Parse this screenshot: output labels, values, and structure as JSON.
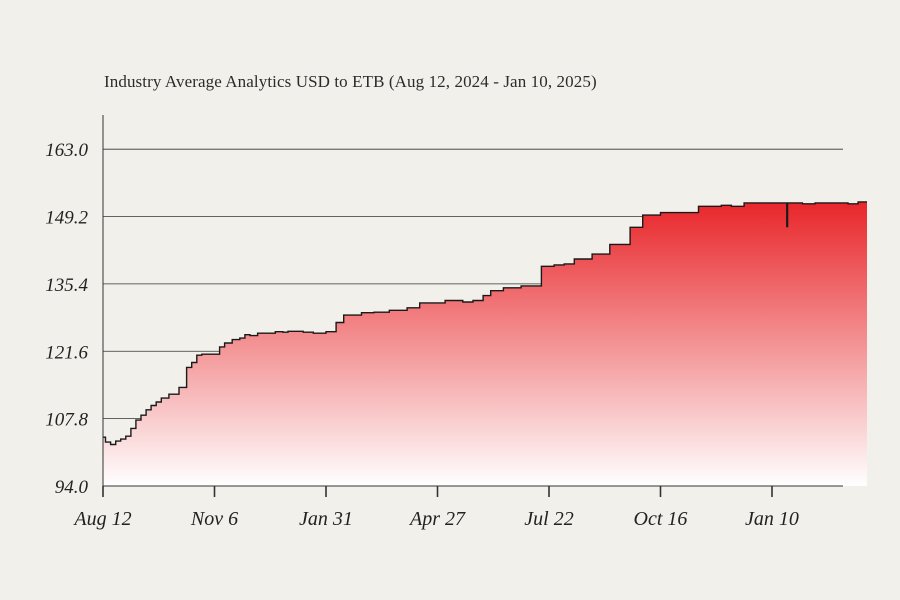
{
  "chart_data": {
    "type": "area",
    "title": "Industry Average Analytics  USD to ETB (Aug 12, 2024 - Jan 10, 2025)",
    "xlabel": "",
    "ylabel": "",
    "ylim": [
      94.0,
      170.0
    ],
    "yticks": [
      "94.0",
      "107.8",
      "121.6",
      "135.4",
      "149.2",
      "163.0"
    ],
    "xtick_labels": [
      "Aug 12",
      "Nov 6",
      "Jan 31",
      "Apr 27",
      "Jul 22",
      "Oct 16",
      "Jan 10"
    ],
    "xlim": [
      0,
      603
    ],
    "grid": true,
    "accent_color": "#e8262a",
    "series": [
      {
        "x": [
          0,
          2,
          6,
          10,
          14,
          18,
          22,
          26,
          30,
          34,
          38,
          42,
          46,
          52,
          60,
          66,
          70,
          74,
          78,
          86,
          92,
          96,
          102,
          108,
          112,
          116,
          122,
          130,
          136,
          142,
          146,
          152,
          158,
          166,
          176,
          184,
          190,
          196,
          204,
          214,
          226,
          240,
          250,
          262,
          270,
          276,
          284,
          292,
          300,
          306,
          316,
          330,
          346,
          356,
          364,
          372,
          386,
          400,
          410,
          416,
          426,
          440,
          456,
          470,
          480,
          488,
          496,
          506,
          518,
          528,
          538,
          544,
          552,
          562,
          572,
          580,
          588,
          596,
          603
        ],
        "y": [
          104.0,
          103.0,
          102.5,
          103.2,
          103.6,
          104.2,
          105.8,
          107.5,
          108.5,
          109.6,
          110.5,
          111.2,
          112.0,
          112.8,
          114.2,
          118.3,
          119.3,
          120.8,
          121.0,
          121.0,
          122.5,
          123.3,
          124.0,
          124.3,
          125.0,
          124.8,
          125.3,
          125.3,
          125.6,
          125.5,
          125.7,
          125.7,
          125.5,
          125.3,
          125.6,
          127.5,
          129.0,
          129.0,
          129.5,
          129.6,
          130.0,
          130.5,
          131.5,
          131.5,
          132.0,
          132.0,
          131.7,
          132.0,
          133.0,
          134.0,
          134.6,
          135.0,
          139.0,
          139.3,
          139.5,
          140.5,
          141.5,
          143.5,
          143.5,
          147.0,
          149.5,
          150.0,
          150.0,
          151.3,
          151.3,
          151.5,
          151.3,
          152.0,
          152.0,
          152.0,
          152.0,
          152.0,
          151.8,
          152.0,
          152.0,
          152.0,
          151.8,
          152.2,
          152.2
        ]
      }
    ],
    "annotation": {
      "x": 540,
      "y_low": 147.0,
      "y_high": 152.0
    }
  }
}
